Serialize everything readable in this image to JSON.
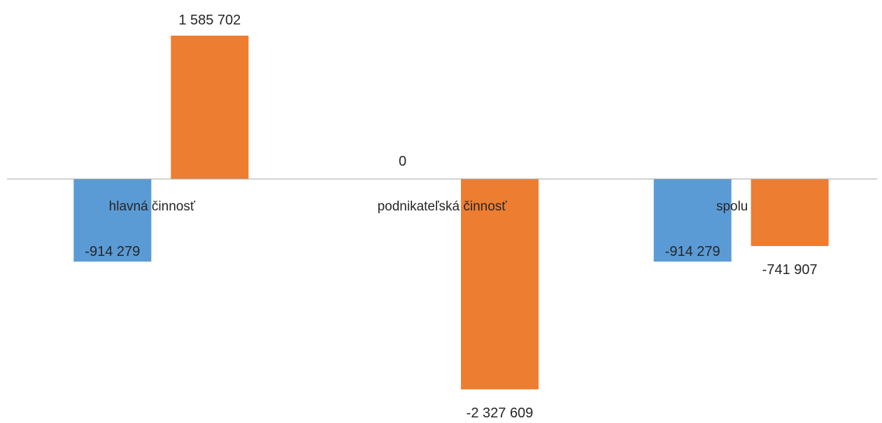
{
  "chart_data": {
    "type": "bar",
    "categories": [
      "hlavná činnosť",
      "podnikateľská činnosť",
      "spolu"
    ],
    "series": [
      {
        "color": "#5B9BD5",
        "values": [
          -914279,
          0,
          -914279
        ],
        "labels": [
          "-914 279",
          "0",
          "-914 279"
        ]
      },
      {
        "color": "#ED7D31",
        "values": [
          1585702,
          -2327609,
          -741907
        ],
        "labels": [
          "1 585 702",
          "-2 327 609",
          "-741 907"
        ]
      }
    ],
    "title": "",
    "xlabel": "",
    "ylabel": "",
    "ylim": [
      -2327609,
      1585702
    ],
    "grid": false,
    "legend": "none",
    "axis_color": "#A6A6A6"
  }
}
